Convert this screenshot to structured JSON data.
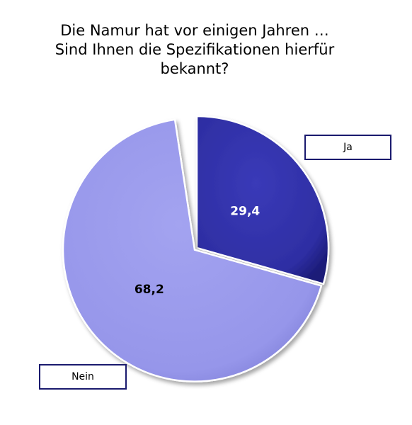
{
  "chart_data": {
    "type": "pie",
    "title": [
      "Die Namur hat vor einigen Jahren …",
      "Sind Ihnen die Spezifikationen hierfür",
      "bekannt?"
    ],
    "slices": [
      {
        "name": "Ja",
        "value": 29.4,
        "label": "29,4",
        "color": "#2e2ea3"
      },
      {
        "name": "Nein",
        "value": 68.2,
        "label": "68,2",
        "color": "#9898ec"
      },
      {
        "name": "",
        "value": 2.4,
        "label": "",
        "color": "#ffffff"
      }
    ],
    "legend": [
      {
        "label": "Ja",
        "placement": "top-right"
      },
      {
        "label": "Nein",
        "placement": "bottom-left"
      }
    ],
    "colors": {
      "ja": "#2e2ea3",
      "nein": "#9898ec",
      "legend_border": "#1a1a6e"
    }
  }
}
